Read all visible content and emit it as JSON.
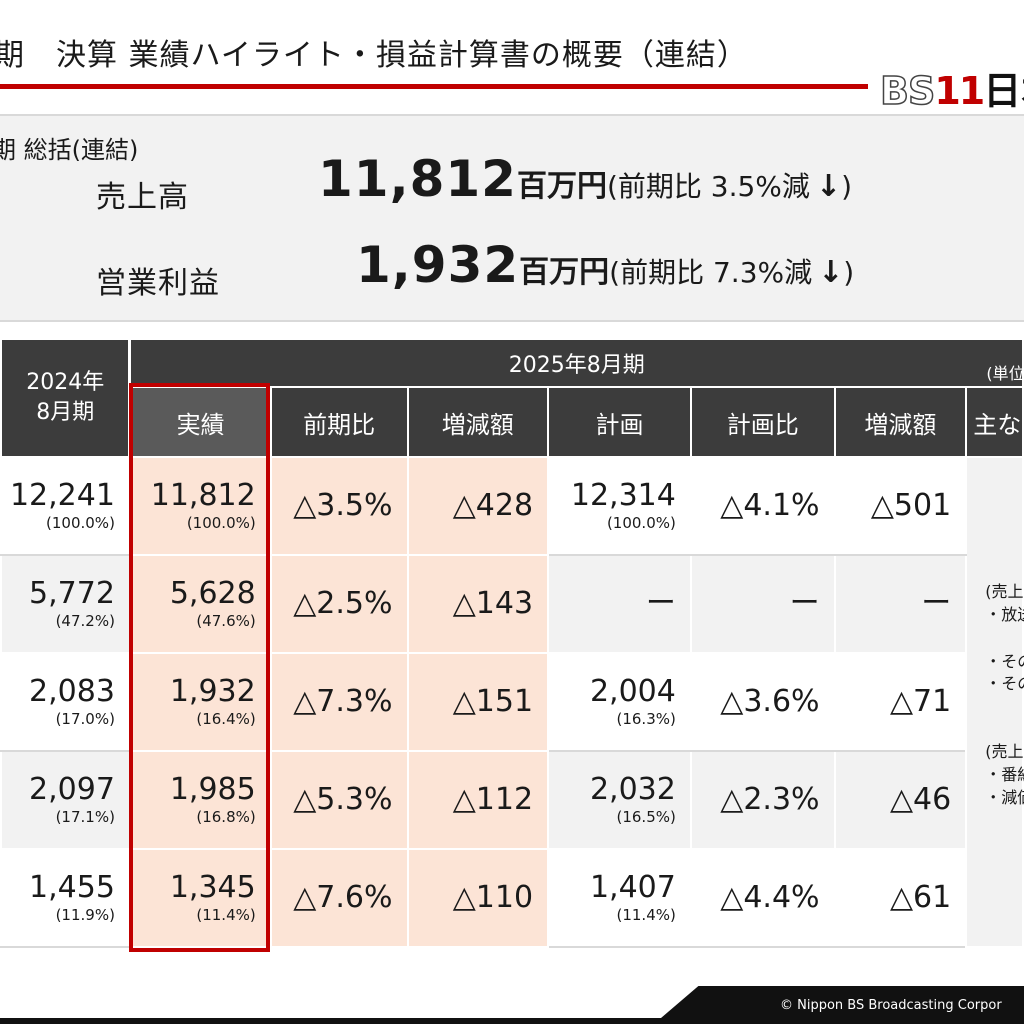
{
  "header": {
    "title": "期　決算 業績ハイライト・損益計算書の概要（連結）",
    "logo": {
      "bs": "BS",
      "eleven": "11",
      "rest": "日本"
    },
    "accent_color": "#c00000"
  },
  "summary": {
    "heading": "期 総括(連結)",
    "sales": {
      "label": "売上高",
      "value": "11,812",
      "unit": "百万円",
      "comparison": "(前期比 3.5%減",
      "close": ")",
      "trend": "down-arrow-icon"
    },
    "operating_profit": {
      "label": "営業利益",
      "value": "1,932",
      "unit": "百万円",
      "comparison": "(前期比 7.3%減",
      "close": ")",
      "trend": "down-arrow-icon"
    }
  },
  "table": {
    "prev_period_header": [
      "2024年",
      "8月期"
    ],
    "current_period_header": "2025年8月期",
    "unit_note": "(単位:百万",
    "columns": [
      "実績",
      "前期比",
      "増減額",
      "計画",
      "計画比",
      "増減額",
      "主な"
    ],
    "rows": [
      {
        "prev": "12,241",
        "prev_pct": "(100.0%)",
        "actual": "11,812",
        "actual_pct": "(100.0%)",
        "yoy": "△3.5%",
        "diff": "△428",
        "plan": "12,314",
        "plan_pct": "(100.0%)",
        "plan_ratio": "△4.1%",
        "plan_diff": "△501"
      },
      {
        "prev": "5,772",
        "prev_pct": "(47.2%)",
        "actual": "5,628",
        "actual_pct": "(47.6%)",
        "yoy": "△2.5%",
        "diff": "△143",
        "plan": "ー",
        "plan_pct": "",
        "plan_ratio": "ー",
        "plan_diff": "ー"
      },
      {
        "prev": "2,083",
        "prev_pct": "(17.0%)",
        "actual": "1,932",
        "actual_pct": "(16.4%)",
        "yoy": "△7.3%",
        "diff": "△151",
        "plan": "2,004",
        "plan_pct": "(16.3%)",
        "plan_ratio": "△3.6%",
        "plan_diff": "△71"
      },
      {
        "prev": "2,097",
        "prev_pct": "(17.1%)",
        "actual": "1,985",
        "actual_pct": "(16.8%)",
        "yoy": "△5.3%",
        "diff": "△112",
        "plan": "2,032",
        "plan_pct": "(16.5%)",
        "plan_ratio": "△2.3%",
        "plan_diff": "△46"
      },
      {
        "prev": "1,455",
        "prev_pct": "(11.9%)",
        "actual": "1,345",
        "actual_pct": "(11.4%)",
        "yoy": "△7.6%",
        "diff": "△110",
        "plan": "1,407",
        "plan_pct": "(11.4%)",
        "plan_ratio": "△4.4%",
        "plan_diff": "△61"
      }
    ],
    "notes": [
      "(売上",
      "・放送",
      "・その",
      "・その",
      "(売上",
      "・番組",
      "・減価"
    ]
  },
  "footer": {
    "copyright": "© Nippon BS Broadcasting Corpor"
  }
}
